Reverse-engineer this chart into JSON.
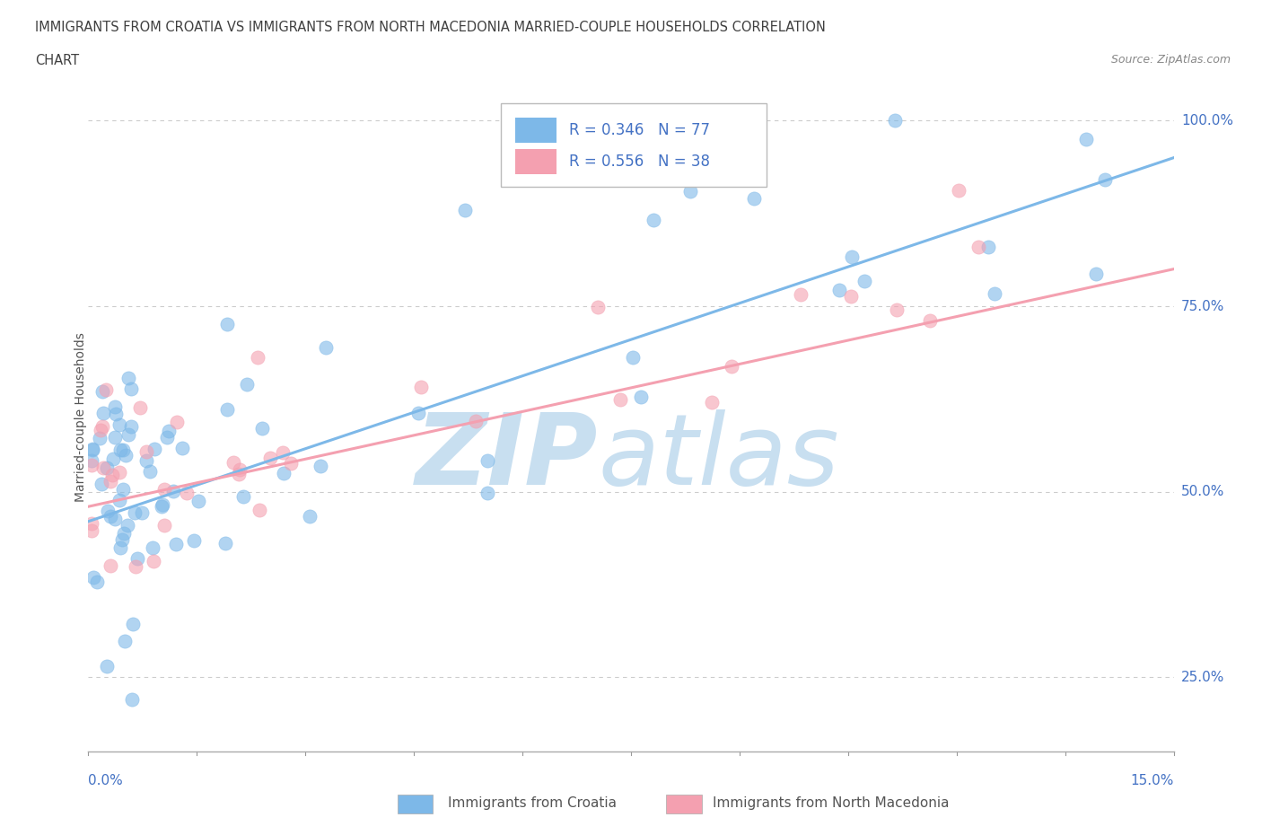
{
  "title_line1": "IMMIGRANTS FROM CROATIA VS IMMIGRANTS FROM NORTH MACEDONIA MARRIED-COUPLE HOUSEHOLDS CORRELATION",
  "title_line2": "CHART",
  "source_text": "Source: ZipAtlas.com",
  "ylabel": "Married-couple Households",
  "xlim": [
    0.0,
    15.0
  ],
  "ylim": [
    15.0,
    105.0
  ],
  "ytick_vals": [
    25.0,
    50.0,
    75.0,
    100.0
  ],
  "ytick_labels": [
    "25.0%",
    "50.0%",
    "75.0%",
    "100.0%"
  ],
  "background_color": "#ffffff",
  "croatia_color": "#7db8e8",
  "north_mac_color": "#f4a0b0",
  "legend_R_croatia": "0.346",
  "legend_N_croatia": "77",
  "legend_R_north_mac": "0.556",
  "legend_N_north_mac": "38",
  "croatia_trend_x": [
    0.0,
    15.0
  ],
  "croatia_trend_y": [
    46.0,
    95.0
  ],
  "north_mac_trend_x": [
    0.0,
    15.0
  ],
  "north_mac_trend_y": [
    48.0,
    80.0
  ],
  "grid_color": "#cccccc",
  "tick_label_color": "#4472c4",
  "title_color": "#404040",
  "legend_text_color": "#4472c4",
  "watermark_zip_color": "#c8dff0",
  "watermark_atlas_color": "#c8dff0"
}
